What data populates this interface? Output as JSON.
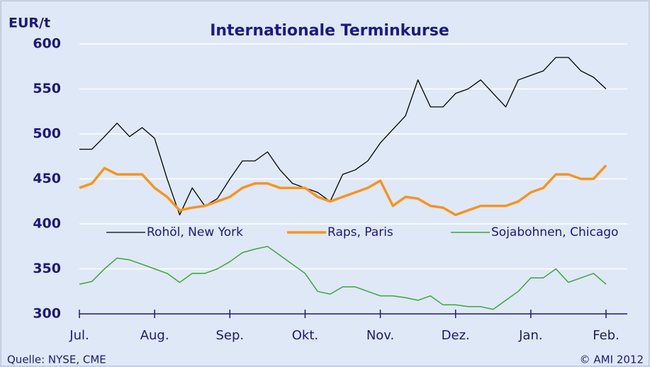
{
  "chart_data": {
    "type": "line",
    "title": "Internationale Terminkurse",
    "y_label": "EUR/t",
    "source": "Quelle: NYSE, CME",
    "copyright": "© AMI 2012",
    "categories": [
      "Jul.",
      null,
      null,
      null,
      null,
      null,
      "Aug.",
      null,
      null,
      null,
      null,
      null,
      "Sep.",
      null,
      null,
      null,
      null,
      null,
      "Okt.",
      null,
      null,
      null,
      null,
      null,
      "Nov.",
      null,
      null,
      null,
      null,
      null,
      "Dez.",
      null,
      null,
      null,
      null,
      null,
      "Jan.",
      null,
      null,
      null,
      null,
      null,
      "Feb."
    ],
    "ylim": [
      300,
      600
    ],
    "yticks": [
      300,
      350,
      400,
      450,
      500,
      550,
      600
    ],
    "grid": true,
    "series": [
      {
        "name": "Rohöl, New York",
        "color": "#000000",
        "width": 1.3,
        "values": [
          483,
          483,
          497,
          512,
          497,
          507,
          495,
          450,
          410,
          440,
          420,
          428,
          450,
          470,
          470,
          480,
          460,
          445,
          440,
          435,
          425,
          455,
          460,
          470,
          490,
          505,
          520,
          560,
          530,
          530,
          545,
          550,
          560,
          545,
          530,
          560,
          565,
          570,
          585,
          585,
          570,
          563,
          550
        ]
      },
      {
        "name": "Raps, Paris",
        "color": "#f7941d",
        "width": 3.5,
        "values": [
          440,
          445,
          462,
          455,
          455,
          455,
          440,
          430,
          415,
          418,
          420,
          425,
          430,
          440,
          445,
          445,
          440,
          440,
          440,
          430,
          425,
          430,
          435,
          440,
          448,
          420,
          430,
          428,
          420,
          418,
          410,
          415,
          420,
          420,
          420,
          425,
          435,
          440,
          455,
          455,
          450,
          450,
          465
        ]
      },
      {
        "name": "Sojabohnen, Chicago",
        "color": "#3aa63a",
        "width": 1.5,
        "values": [
          333,
          336,
          350,
          362,
          360,
          355,
          350,
          345,
          335,
          345,
          345,
          350,
          358,
          368,
          372,
          375,
          365,
          355,
          345,
          325,
          322,
          330,
          330,
          325,
          320,
          320,
          318,
          315,
          320,
          310,
          310,
          308,
          308,
          305,
          315,
          325,
          340,
          340,
          350,
          335,
          340,
          345,
          333
        ]
      }
    ]
  }
}
